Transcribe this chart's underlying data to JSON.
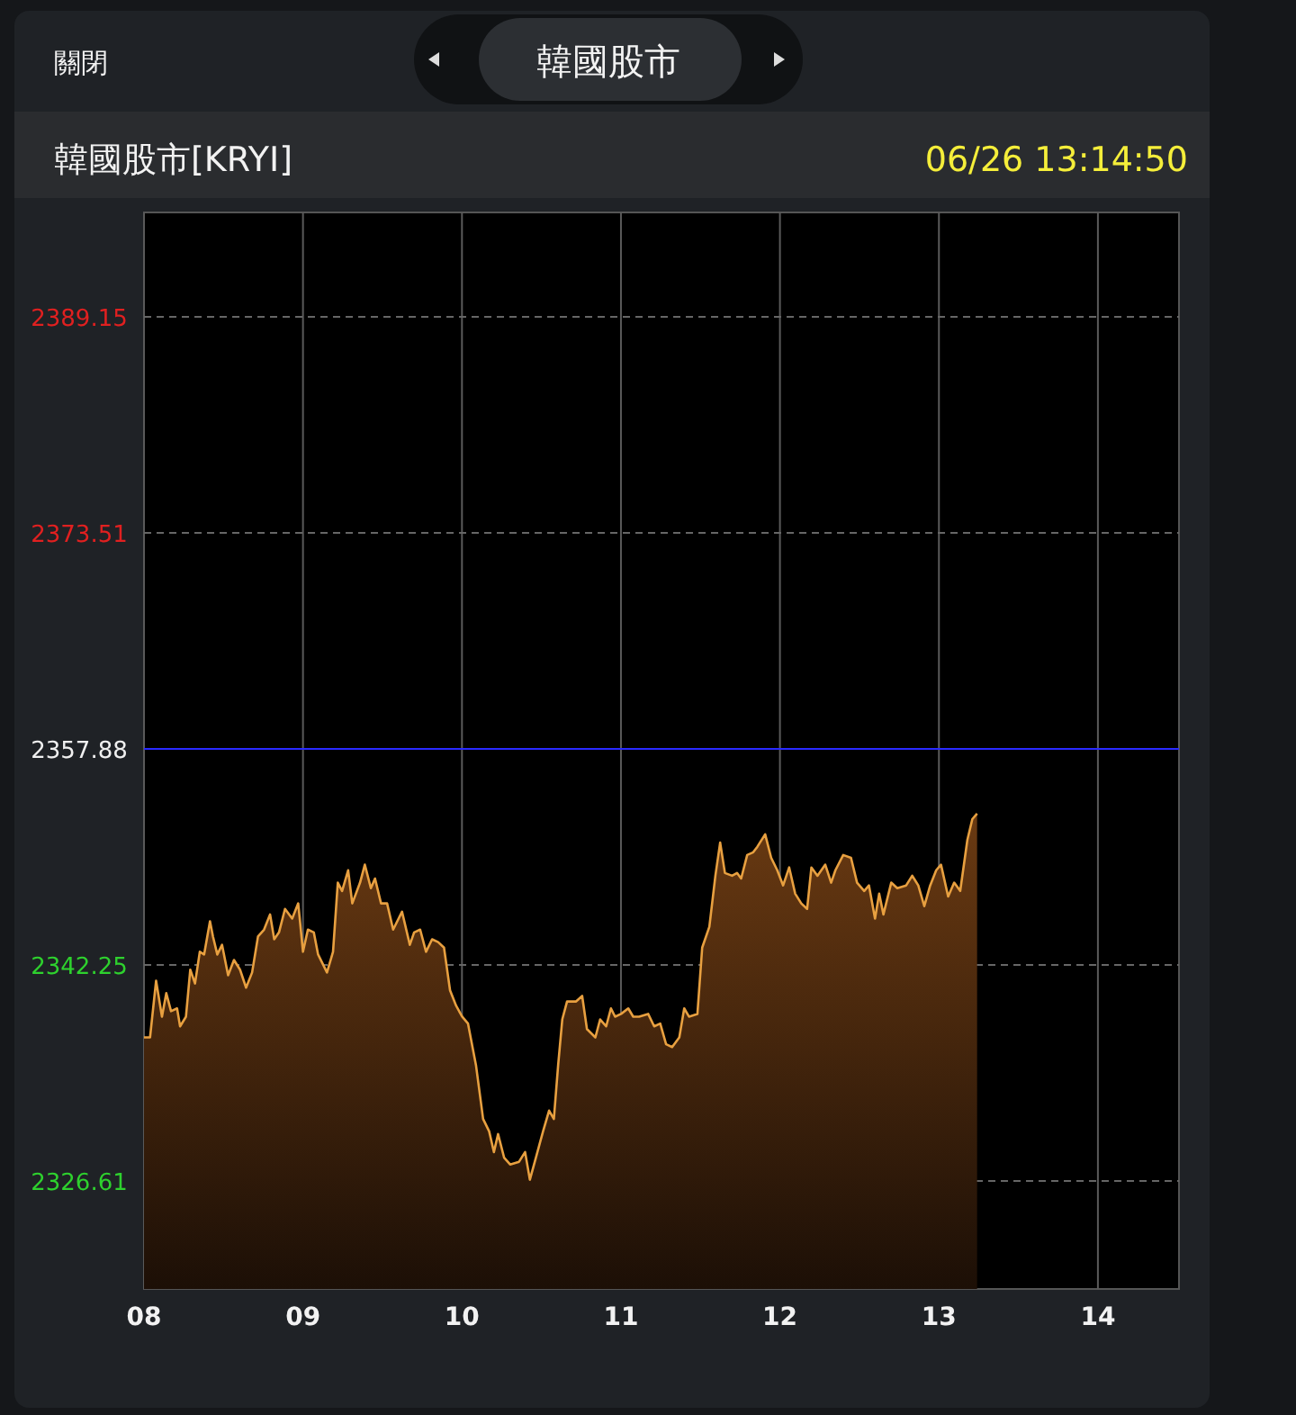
{
  "chart_data": {
    "type": "area",
    "title": "韓國股市[KRYI]",
    "subtitle": "06/26 13:14:50",
    "annotations": [
      "關閉",
      "韓國股市"
    ],
    "xlim": [
      8,
      14.51
    ],
    "ylim": [
      2318.79,
      2396.71
    ],
    "xticks": [
      {
        "value": 8,
        "label": "08"
      },
      {
        "value": 9,
        "label": "09"
      },
      {
        "value": 10,
        "label": "10"
      },
      {
        "value": 11,
        "label": "11"
      },
      {
        "value": 12,
        "label": "12"
      },
      {
        "value": 13,
        "label": "13"
      },
      {
        "value": 14,
        "label": "14"
      }
    ],
    "yticks": [
      2326.61,
      2342.25,
      2357.88,
      2373.51,
      2389.15
    ],
    "grid": true,
    "ref_lines": [
      {
        "axis": "y",
        "value": 2357.88,
        "color": "#2a2aff"
      }
    ],
    "x": [
      8.0,
      8.038,
      8.076,
      8.113,
      8.14,
      8.17,
      8.208,
      8.227,
      8.264,
      8.291,
      8.321,
      8.351,
      8.378,
      8.415,
      8.434,
      8.461,
      8.491,
      8.529,
      8.566,
      8.604,
      8.642,
      8.68,
      8.717,
      8.755,
      8.793,
      8.819,
      8.849,
      8.887,
      8.932,
      8.97,
      9.0,
      9.031,
      9.068,
      9.095,
      9.151,
      9.189,
      9.219,
      9.246,
      9.284,
      9.31,
      9.359,
      9.389,
      9.427,
      9.453,
      9.491,
      9.529,
      9.567,
      9.623,
      9.672,
      9.699,
      9.737,
      9.774,
      9.812,
      9.85,
      9.887,
      9.925,
      9.963,
      10.001,
      10.038,
      10.088,
      10.133,
      10.171,
      10.201,
      10.227,
      10.265,
      10.303,
      10.359,
      10.397,
      10.427,
      10.465,
      10.51,
      10.548,
      10.578,
      10.605,
      10.631,
      10.661,
      10.718,
      10.756,
      10.786,
      10.839,
      10.869,
      10.907,
      10.937,
      10.963,
      11.001,
      11.046,
      11.077,
      11.114,
      11.171,
      11.209,
      11.247,
      11.284,
      11.322,
      11.367,
      11.398,
      11.428,
      11.481,
      11.511,
      11.556,
      11.594,
      11.624,
      11.654,
      11.699,
      11.73,
      11.756,
      11.794,
      11.832,
      11.858,
      11.907,
      11.945,
      11.983,
      12.02,
      12.058,
      12.096,
      12.134,
      12.171,
      12.198,
      12.236,
      12.285,
      12.322,
      12.349,
      12.398,
      12.447,
      12.485,
      12.53,
      12.56,
      12.598,
      12.624,
      12.651,
      12.7,
      12.738,
      12.794,
      12.832,
      12.87,
      12.908,
      12.945,
      12.983,
      13.013,
      13.058,
      13.096,
      13.134,
      13.179,
      13.21,
      13.24
    ],
    "series": [
      {
        "color": "#e8a040",
        "values": [
          2337.0,
          2337.0,
          2341.1,
          2338.5,
          2340.2,
          2338.9,
          2339.1,
          2337.8,
          2338.5,
          2341.9,
          2340.9,
          2343.2,
          2343.0,
          2345.4,
          2344.3,
          2343.0,
          2343.7,
          2341.5,
          2342.6,
          2341.9,
          2340.6,
          2341.7,
          2344.3,
          2344.8,
          2345.9,
          2344.1,
          2344.6,
          2346.3,
          2345.6,
          2346.7,
          2343.2,
          2344.8,
          2344.6,
          2343.0,
          2341.7,
          2343.2,
          2348.2,
          2347.6,
          2349.1,
          2346.7,
          2348.2,
          2349.5,
          2347.8,
          2348.5,
          2346.7,
          2346.7,
          2344.8,
          2346.1,
          2343.7,
          2344.6,
          2344.8,
          2343.2,
          2344.1,
          2343.9,
          2343.5,
          2340.4,
          2339.3,
          2338.5,
          2338.0,
          2335.0,
          2331.1,
          2330.2,
          2328.7,
          2330.0,
          2328.3,
          2327.8,
          2328.0,
          2328.7,
          2326.7,
          2328.3,
          2330.2,
          2331.7,
          2331.1,
          2335.0,
          2338.3,
          2339.6,
          2339.6,
          2340.0,
          2337.6,
          2337.0,
          2338.3,
          2337.8,
          2339.1,
          2338.5,
          2338.7,
          2339.1,
          2338.5,
          2338.5,
          2338.7,
          2337.8,
          2338.0,
          2336.5,
          2336.3,
          2337.0,
          2339.1,
          2338.5,
          2338.7,
          2343.5,
          2345.0,
          2348.7,
          2351.1,
          2348.9,
          2348.7,
          2348.9,
          2348.5,
          2350.2,
          2350.4,
          2350.8,
          2351.7,
          2350.0,
          2349.1,
          2348.0,
          2349.3,
          2347.4,
          2346.7,
          2346.3,
          2349.3,
          2348.7,
          2349.5,
          2348.2,
          2349.1,
          2350.2,
          2350.0,
          2348.2,
          2347.6,
          2348.0,
          2345.6,
          2347.4,
          2345.9,
          2348.2,
          2347.8,
          2348.0,
          2348.7,
          2348.0,
          2346.5,
          2348.0,
          2349.1,
          2349.5,
          2347.2,
          2348.2,
          2347.6,
          2351.3,
          2352.8,
          2353.2
        ]
      }
    ]
  }
}
